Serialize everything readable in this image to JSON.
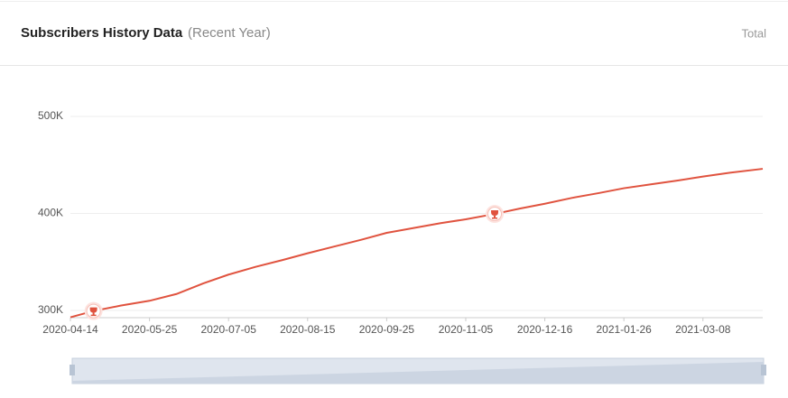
{
  "header": {
    "title": "Subscribers History Data",
    "subtitle": "(Recent Year)",
    "mode": "Total"
  },
  "chart_data": {
    "type": "line",
    "color": "#e0533f",
    "grid": true,
    "x": [
      "2020-04-14",
      "2020-04-26",
      "2020-05-10",
      "2020-05-25",
      "2020-06-08",
      "2020-06-22",
      "2020-07-05",
      "2020-07-19",
      "2020-08-02",
      "2020-08-15",
      "2020-08-29",
      "2020-09-12",
      "2020-09-25",
      "2020-10-09",
      "2020-10-23",
      "2020-11-05",
      "2020-11-20",
      "2020-12-03",
      "2020-12-16",
      "2020-12-30",
      "2021-01-13",
      "2021-01-26",
      "2021-02-09",
      "2021-02-23",
      "2021-03-08",
      "2021-03-22",
      "2021-04-08"
    ],
    "values": [
      293000,
      299500,
      305000,
      310000,
      317000,
      328000,
      337000,
      345000,
      352000,
      359000,
      366000,
      373000,
      380000,
      385000,
      390000,
      394000,
      399500,
      405000,
      410000,
      416000,
      421000,
      426000,
      430000,
      434000,
      438000,
      442000,
      446000
    ],
    "markers": [
      "2020-04-26",
      "2020-11-20"
    ],
    "xlim": [
      "2020-04-14",
      "2021-04-08"
    ],
    "xticks": [
      "2020-04-14",
      "2020-05-25",
      "2020-07-05",
      "2020-08-15",
      "2020-09-25",
      "2020-11-05",
      "2020-12-16",
      "2021-01-26",
      "2021-03-08"
    ],
    "ylim": [
      292600,
      500000
    ],
    "yticks": [
      {
        "value": 300000,
        "label": "300K"
      },
      {
        "value": 400000,
        "label": "400K"
      },
      {
        "value": 500000,
        "label": "500K"
      }
    ]
  }
}
